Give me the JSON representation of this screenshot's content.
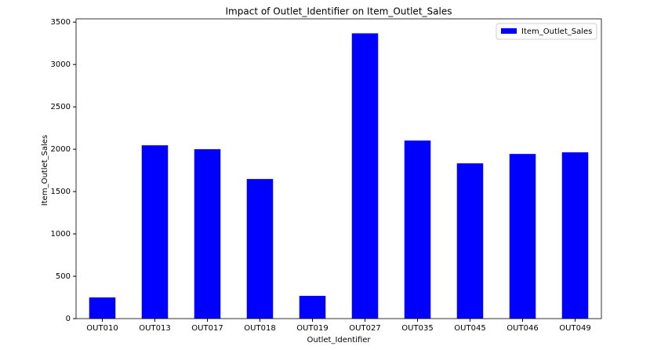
{
  "chart_data": {
    "type": "bar",
    "title": "Impact of Outlet_Identifier on Item_Outlet_Sales",
    "x_label": "Outlet_Identifier",
    "y_label": "Item_Outlet_Sales",
    "categories": [
      "OUT010",
      "OUT013",
      "OUT017",
      "OUT018",
      "OUT019",
      "OUT027",
      "OUT035",
      "OUT045",
      "OUT046",
      "OUT049"
    ],
    "series": [
      {
        "name": "Item_Outlet_Sales",
        "color": "#0000ff",
        "values": [
          250,
          2046,
          2000,
          1648,
          269,
          3368,
          2102,
          1833,
          1944,
          1963
        ]
      }
    ],
    "ylim": [
      0,
      3539
    ],
    "yticks": [
      0,
      500,
      1000,
      1500,
      2000,
      2500,
      3000,
      3500
    ],
    "legend": "upper right",
    "grid": false
  }
}
